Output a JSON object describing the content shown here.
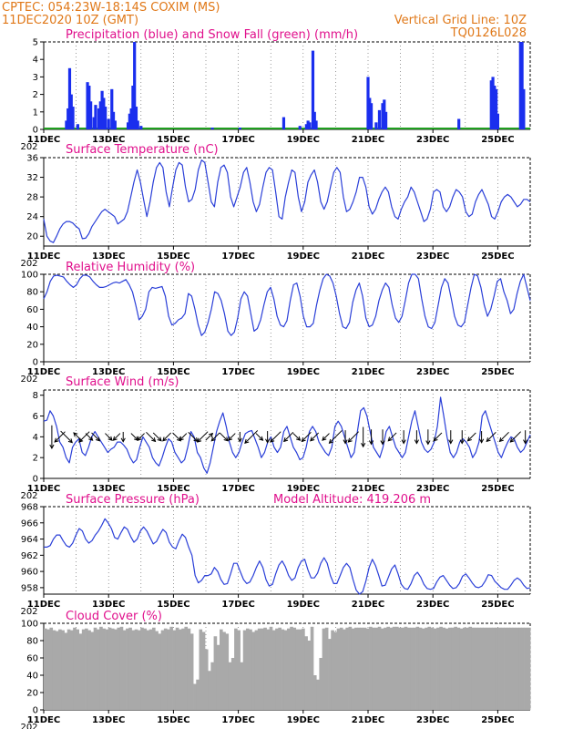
{
  "header": {
    "left_line1": "CPTEC:   054:23W-18:14S   COXIM (MS)",
    "left_line2": "11DEC2020 10Z (GMT)",
    "right_line1": "Vertical Grid Line: 10Z",
    "right_line2": "TQ0126L028"
  },
  "x_labels": [
    "11DEC",
    "13DEC",
    "15DEC",
    "17DEC",
    "19DEC",
    "21DEC",
    "23DEC",
    "25DEC"
  ],
  "x_label_days": [
    0,
    2,
    4,
    6,
    8,
    10,
    12,
    14
  ],
  "x_year_fragment": "202",
  "colors": {
    "precip": "#1a2eee",
    "snow": "#1f9e1f",
    "line": "#2a3fd8",
    "wind_arrow": "#000000",
    "cloud": "#a9a9a9",
    "grid": "#555555"
  },
  "chart_data": [
    {
      "id": "precip",
      "type": "bar",
      "title": "Precipitation (blue) and Snow Fall (green) (mm/h)",
      "yticks": [
        0,
        1,
        2,
        3,
        4,
        5
      ],
      "ylim": [
        0,
        5
      ],
      "x_unit": "days since 11DEC2020 10Z (3-hourly steps, 0..15)",
      "series": [
        {
          "name": "Precipitation",
          "color": "#1a2eee",
          "points": [
            [
              0.7,
              0.5
            ],
            [
              0.75,
              1.2
            ],
            [
              0.8,
              3.5
            ],
            [
              0.85,
              2.0
            ],
            [
              0.9,
              1.3
            ],
            [
              1.05,
              0.3
            ],
            [
              1.35,
              2.7
            ],
            [
              1.4,
              2.5
            ],
            [
              1.45,
              1.6
            ],
            [
              1.55,
              0.7
            ],
            [
              1.6,
              1.4
            ],
            [
              1.7,
              1.2
            ],
            [
              1.75,
              1.6
            ],
            [
              1.8,
              2.2
            ],
            [
              1.85,
              1.8
            ],
            [
              1.9,
              1.3
            ],
            [
              2.0,
              0.6
            ],
            [
              2.1,
              2.3
            ],
            [
              2.15,
              1.0
            ],
            [
              2.2,
              0.5
            ],
            [
              2.6,
              0.4
            ],
            [
              2.65,
              0.9
            ],
            [
              2.7,
              1.2
            ],
            [
              2.75,
              2.5
            ],
            [
              2.8,
              5.0
            ],
            [
              2.85,
              1.3
            ],
            [
              2.9,
              0.5
            ],
            [
              3.0,
              0.2
            ],
            [
              5.2,
              0.1
            ],
            [
              6.05,
              0.1
            ],
            [
              7.4,
              0.7
            ],
            [
              7.9,
              0.2
            ],
            [
              8.1,
              0.3
            ],
            [
              8.15,
              0.5
            ],
            [
              8.2,
              0.4
            ],
            [
              8.3,
              4.5
            ],
            [
              8.35,
              1.0
            ],
            [
              8.4,
              0.5
            ],
            [
              10.0,
              3.0
            ],
            [
              10.05,
              1.8
            ],
            [
              10.1,
              1.5
            ],
            [
              10.25,
              0.4
            ],
            [
              10.35,
              1.1
            ],
            [
              10.45,
              1.5
            ],
            [
              10.5,
              1.7
            ],
            [
              10.55,
              1.0
            ],
            [
              12.8,
              0.6
            ],
            [
              13.8,
              2.8
            ],
            [
              13.85,
              3.0
            ],
            [
              13.9,
              2.5
            ],
            [
              13.95,
              2.3
            ],
            [
              14.0,
              0.9
            ],
            [
              14.7,
              5.0
            ],
            [
              14.75,
              5.0
            ],
            [
              14.8,
              2.3
            ]
          ]
        },
        {
          "name": "Snow Fall",
          "color": "#1f9e1f",
          "points": []
        }
      ]
    },
    {
      "id": "temp",
      "type": "line",
      "title": "Surface Temperature (nC)",
      "yticks": [
        20,
        24,
        28,
        32,
        36
      ],
      "ylim": [
        18,
        36
      ],
      "values": [
        23.5,
        20,
        19,
        18.7,
        20,
        21.5,
        22.5,
        23,
        23,
        22.7,
        22,
        21.5,
        19.5,
        19.6,
        20.5,
        22,
        23,
        24,
        25,
        25.5,
        25,
        24.5,
        24,
        22.5,
        23,
        23.5,
        25,
        28,
        31,
        33.5,
        31,
        27.5,
        24,
        27,
        31,
        34,
        35,
        34,
        29,
        26,
        30,
        33.5,
        35,
        34.5,
        30,
        27,
        27.5,
        29.5,
        33.5,
        35.5,
        35,
        31,
        27,
        26,
        31,
        34,
        34.5,
        33,
        28,
        26,
        28,
        30,
        33,
        34,
        31,
        27,
        25,
        26.5,
        30,
        33,
        34,
        33.5,
        29,
        24,
        23.5,
        28,
        31,
        33.5,
        33,
        28,
        25,
        27,
        31,
        32.5,
        33.5,
        31,
        27,
        25.5,
        27,
        30,
        33,
        34,
        33,
        28,
        25,
        25.5,
        27,
        29,
        32,
        32,
        30,
        26,
        24.5,
        25.5,
        27.5,
        29,
        30,
        29,
        26,
        24,
        23.5,
        25.5,
        27,
        28,
        30,
        29,
        27,
        25,
        23,
        23.5,
        25.5,
        29,
        29.5,
        29,
        26,
        25,
        26,
        28,
        29.5,
        29,
        28,
        25,
        24,
        24.5,
        27,
        28.5,
        29.5,
        28,
        26.5,
        24,
        23.5,
        25,
        27,
        28,
        28.5,
        28,
        27,
        26,
        26.5,
        27.5,
        27.5,
        27
      ]
    },
    {
      "id": "rh",
      "type": "line",
      "title": "Relative Humidity (%)",
      "yticks": [
        0,
        20,
        40,
        60,
        80,
        100
      ],
      "ylim": [
        0,
        100
      ],
      "values": [
        72,
        80,
        92,
        98,
        99,
        98,
        97,
        92,
        88,
        85,
        88,
        95,
        99,
        99,
        97,
        92,
        88,
        85,
        85,
        86,
        88,
        90,
        91,
        90,
        92,
        94,
        88,
        80,
        65,
        48,
        52,
        60,
        80,
        85,
        84,
        85,
        86,
        75,
        52,
        42,
        44,
        48,
        50,
        55,
        78,
        75,
        60,
        42,
        30,
        34,
        45,
        60,
        80,
        78,
        70,
        55,
        35,
        30,
        34,
        50,
        72,
        80,
        75,
        55,
        35,
        38,
        48,
        65,
        80,
        85,
        72,
        52,
        42,
        40,
        47,
        70,
        88,
        90,
        75,
        52,
        40,
        40,
        44,
        65,
        82,
        95,
        100,
        98,
        90,
        75,
        55,
        40,
        38,
        45,
        68,
        82,
        90,
        75,
        50,
        40,
        42,
        52,
        70,
        82,
        90,
        85,
        65,
        50,
        45,
        52,
        70,
        90,
        100,
        100,
        95,
        72,
        52,
        40,
        38,
        45,
        65,
        85,
        95,
        90,
        72,
        52,
        42,
        40,
        45,
        65,
        85,
        100,
        98,
        85,
        65,
        52,
        60,
        75,
        92,
        95,
        80,
        70,
        55,
        60,
        78,
        92,
        100,
        85,
        70
      ]
    },
    {
      "id": "wind",
      "type": "line",
      "title": "Surface Wind (m/s)",
      "yticks": [
        0,
        2,
        4,
        6,
        8
      ],
      "ylim": [
        0,
        8.5
      ],
      "values": [
        5.5,
        5.6,
        6.5,
        6,
        5,
        3.5,
        3,
        2,
        1.5,
        3,
        3.5,
        3.8,
        2.5,
        2.2,
        3,
        4,
        4.5,
        4,
        3.5,
        3,
        2.5,
        2.8,
        3,
        3.5,
        3.5,
        3.2,
        2.8,
        2,
        1.5,
        1.8,
        3,
        4,
        3.5,
        3,
        2,
        1.5,
        1.2,
        2,
        3,
        3.8,
        3.5,
        2.5,
        2,
        1.5,
        1.8,
        3,
        4.5,
        4,
        2.5,
        2,
        1,
        0.5,
        1.5,
        3,
        4.5,
        5.5,
        6.3,
        5,
        3.5,
        2.5,
        2,
        2.5,
        3.5,
        4.3,
        4.5,
        4.6,
        3.8,
        3,
        2,
        2.5,
        3.5,
        4,
        3,
        2.5,
        3,
        4.5,
        5,
        4,
        3,
        2.5,
        1.8,
        2,
        3,
        4.5,
        5,
        4.5,
        3.5,
        3,
        2.5,
        2.2,
        3,
        5,
        5.5,
        5,
        4,
        3,
        2,
        2.5,
        4.5,
        6.5,
        6.8,
        6,
        4.5,
        3,
        2.5,
        2,
        3,
        4.5,
        5,
        4,
        3,
        2.5,
        2,
        2.5,
        4,
        5.5,
        6.5,
        5,
        3.5,
        2.8,
        2.5,
        2.8,
        3.5,
        5,
        7.8,
        6,
        4,
        2.5,
        2,
        2.5,
        3.5,
        3.8,
        3.5,
        3,
        2,
        2.5,
        3.5,
        6,
        6.5,
        5.5,
        4.5,
        3.5,
        2.5,
        2,
        2.8,
        3.5,
        4,
        3.8,
        3,
        2.5,
        2.8,
        3.5,
        4.2
      ]
    },
    {
      "id": "pres",
      "type": "line",
      "title": "Surface Pressure (hPa)",
      "annotation": "Model Altitude: 419.206  m",
      "yticks": [
        958,
        960,
        962,
        964,
        966,
        968
      ],
      "ylim": [
        957.2,
        968
      ],
      "values": [
        963,
        963,
        963.2,
        964,
        964.5,
        964.5,
        963.8,
        963.2,
        963,
        963.5,
        964.5,
        965.3,
        965,
        964,
        963.5,
        963.8,
        964.5,
        965,
        965.7,
        966.5,
        966,
        965.3,
        964.2,
        964,
        964.8,
        965.5,
        965.2,
        964.3,
        963.6,
        964,
        965,
        965.5,
        965,
        964.2,
        963.4,
        963.7,
        964.5,
        965.2,
        964.8,
        963.6,
        963,
        962.8,
        963.8,
        964.6,
        964.2,
        963,
        962,
        959.5,
        958.6,
        958.9,
        959.5,
        959.5,
        959.7,
        960.5,
        960,
        959,
        958.4,
        958.5,
        959.7,
        961,
        961,
        960,
        959,
        958.5,
        958.7,
        959.5,
        960.5,
        961.3,
        960.5,
        959,
        958.2,
        958.4,
        959.7,
        960.8,
        961.3,
        960.6,
        959.5,
        958.9,
        959.2,
        960.5,
        961.3,
        961.5,
        960.2,
        959.2,
        959.2,
        959.8,
        961,
        961.7,
        961,
        959.5,
        958.5,
        958.5,
        959.5,
        960.5,
        961,
        960.5,
        959,
        957.7,
        957.2,
        957.5,
        958.8,
        960.5,
        961.5,
        960.7,
        959.5,
        958.2,
        958.3,
        959.3,
        960.3,
        960.8,
        959.7,
        958.4,
        957.9,
        957.8,
        958.5,
        959.5,
        959.9,
        959.3,
        958.4,
        957.9,
        957.8,
        957.9,
        958.7,
        959.3,
        959.5,
        958.9,
        958.3,
        957.9,
        958,
        958.5,
        959.4,
        959.7,
        959.2,
        958.6,
        958.1,
        958,
        958.2,
        958.8,
        959.6,
        959.5,
        958.8,
        958.4,
        958,
        957.8,
        957.8,
        958.3,
        958.9,
        959.2,
        958.9,
        958.3,
        957.9,
        958
      ]
    },
    {
      "id": "cloud",
      "type": "bar",
      "title": "Cloud Cover (%)",
      "yticks": [
        0,
        20,
        40,
        60,
        80,
        100
      ],
      "ylim": [
        0,
        100
      ],
      "values": [
        94,
        93,
        95,
        92,
        91,
        93,
        92,
        89,
        93,
        92,
        95,
        93,
        88,
        93,
        94,
        92,
        90,
        95,
        93,
        96,
        94,
        93,
        95,
        94,
        93,
        95,
        96,
        92,
        94,
        95,
        92,
        93,
        92,
        95,
        94,
        92,
        93,
        95,
        91,
        88,
        92,
        94,
        93,
        96,
        92,
        95,
        93,
        94,
        96,
        94,
        88,
        30,
        35,
        93,
        90,
        70,
        45,
        55,
        85,
        75,
        93,
        90,
        88,
        55,
        60,
        94,
        92,
        55,
        92,
        94,
        93,
        90,
        92,
        94,
        94,
        95,
        93,
        96,
        92,
        94,
        95,
        93,
        92,
        94,
        96,
        95,
        93,
        93,
        94,
        85,
        80,
        96,
        40,
        35,
        60,
        94,
        95,
        82,
        92,
        90,
        94,
        95,
        93,
        95,
        96,
        94,
        95,
        95,
        95,
        95,
        94,
        96,
        95,
        95,
        96,
        94,
        95,
        96,
        95,
        96,
        96,
        95,
        95,
        96,
        95,
        95,
        95,
        96,
        95,
        94,
        95,
        96,
        95,
        94,
        95,
        96,
        95,
        94,
        95,
        95,
        96,
        95,
        94,
        95,
        95,
        96,
        95,
        95,
        95,
        95,
        95,
        95,
        95,
        95,
        95,
        95,
        95,
        95,
        95,
        95,
        95,
        95,
        95,
        95,
        95,
        95
      ]
    }
  ],
  "wind_vectors": [
    {
      "x": 0.25,
      "dir": "S",
      "len": 1.4
    },
    {
      "x": 0.5,
      "dir": "SW",
      "len": 0.9
    },
    {
      "x": 0.7,
      "dir": "SE",
      "len": 1.0
    },
    {
      "x": 1.05,
      "dir": "NW",
      "len": 0.7
    },
    {
      "x": 1.25,
      "dir": "SW",
      "len": 0.9
    },
    {
      "x": 1.4,
      "dir": "SE",
      "len": 0.6
    },
    {
      "x": 1.6,
      "dir": "SE",
      "len": 0.7
    },
    {
      "x": 2.0,
      "dir": "SE",
      "len": 0.6
    },
    {
      "x": 2.25,
      "dir": "SW",
      "len": 0.6
    },
    {
      "x": 2.45,
      "dir": "S",
      "len": 0.6
    },
    {
      "x": 2.8,
      "dir": "SE",
      "len": 0.6
    },
    {
      "x": 3.0,
      "dir": "SW",
      "len": 0.6
    },
    {
      "x": 3.3,
      "dir": "SE",
      "len": 0.8
    },
    {
      "x": 3.5,
      "dir": "SE",
      "len": 0.7
    },
    {
      "x": 3.8,
      "dir": "SW",
      "len": 0.7
    },
    {
      "x": 4.1,
      "dir": "SE",
      "len": 0.7
    },
    {
      "x": 4.3,
      "dir": "SW",
      "len": 0.6
    },
    {
      "x": 4.6,
      "dir": "SE",
      "len": 0.8
    },
    {
      "x": 4.9,
      "dir": "SW",
      "len": 0.9
    },
    {
      "x": 5.1,
      "dir": "NE",
      "len": 0.6
    },
    {
      "x": 5.3,
      "dir": "SW",
      "len": 0.7
    },
    {
      "x": 5.55,
      "dir": "SE",
      "len": 0.7
    },
    {
      "x": 5.8,
      "dir": "SW",
      "len": 0.6
    },
    {
      "x": 6.05,
      "dir": "S",
      "len": 0.6
    },
    {
      "x": 6.4,
      "dir": "SW",
      "len": 1.1
    },
    {
      "x": 6.65,
      "dir": "SE",
      "len": 0.6
    },
    {
      "x": 6.9,
      "dir": "S",
      "len": 0.7
    },
    {
      "x": 7.15,
      "dir": "SW",
      "len": 0.9
    },
    {
      "x": 7.55,
      "dir": "SW",
      "len": 0.8
    },
    {
      "x": 7.8,
      "dir": "SE",
      "len": 0.6
    },
    {
      "x": 8.1,
      "dir": "SW",
      "len": 0.8
    },
    {
      "x": 8.35,
      "dir": "SW",
      "len": 0.7
    },
    {
      "x": 8.7,
      "dir": "SW",
      "len": 0.6
    },
    {
      "x": 9.0,
      "dir": "SW",
      "len": 1.1
    },
    {
      "x": 9.3,
      "dir": "S",
      "len": 0.8
    },
    {
      "x": 9.55,
      "dir": "SW",
      "len": 0.9
    },
    {
      "x": 9.85,
      "dir": "S",
      "len": 1.2
    },
    {
      "x": 10.1,
      "dir": "S",
      "len": 0.9
    },
    {
      "x": 10.45,
      "dir": "S",
      "len": 0.9
    },
    {
      "x": 10.75,
      "dir": "SW",
      "len": 0.7
    },
    {
      "x": 11.1,
      "dir": "S",
      "len": 0.8
    },
    {
      "x": 11.5,
      "dir": "S",
      "len": 0.8
    },
    {
      "x": 11.85,
      "dir": "S",
      "len": 0.9
    },
    {
      "x": 12.15,
      "dir": "SW",
      "len": 0.7
    },
    {
      "x": 12.55,
      "dir": "S",
      "len": 0.8
    },
    {
      "x": 12.9,
      "dir": "S",
      "len": 0.8
    },
    {
      "x": 13.2,
      "dir": "SW",
      "len": 0.7
    },
    {
      "x": 13.5,
      "dir": "S",
      "len": 0.7
    },
    {
      "x": 13.8,
      "dir": "SW",
      "len": 0.8
    },
    {
      "x": 14.2,
      "dir": "SW",
      "len": 0.8
    },
    {
      "x": 14.55,
      "dir": "SW",
      "len": 0.9
    },
    {
      "x": 14.85,
      "dir": "S",
      "len": 0.8
    }
  ]
}
